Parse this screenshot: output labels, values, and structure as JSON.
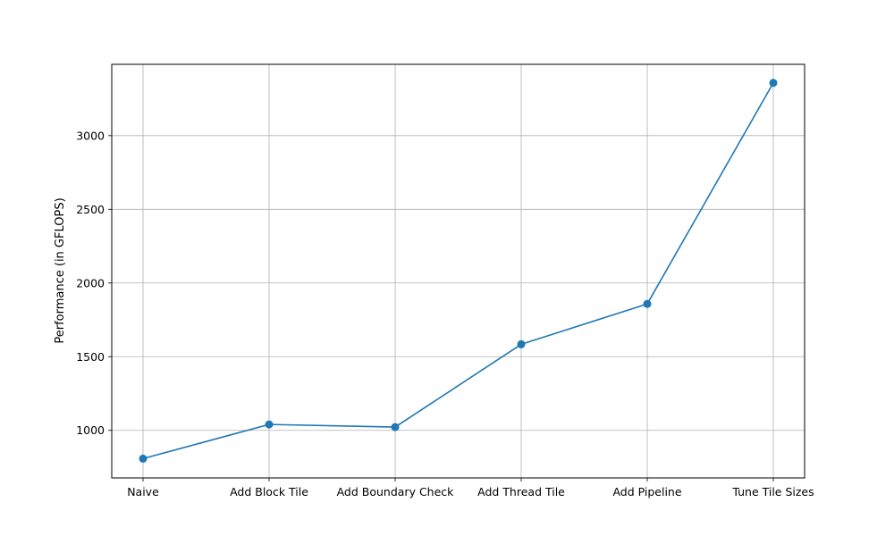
{
  "chart_data": {
    "type": "line",
    "title": "",
    "xlabel": "",
    "ylabel": "Performance (in GFLOPS)",
    "categories": [
      "Naive",
      "Add Block Tile",
      "Add Boundary Check",
      "Add Thread Tile",
      "Add Pipeline",
      "Tune Tile Sizes"
    ],
    "series": [
      {
        "values": [
          808,
          1040,
          1022,
          1584,
          1858,
          3358
        ],
        "color": "#1f77b4"
      }
    ],
    "ylim": [
      677,
      3484
    ],
    "yticks": [
      1000,
      1500,
      2000,
      2500,
      3000
    ],
    "grid": true,
    "legend": "none"
  }
}
